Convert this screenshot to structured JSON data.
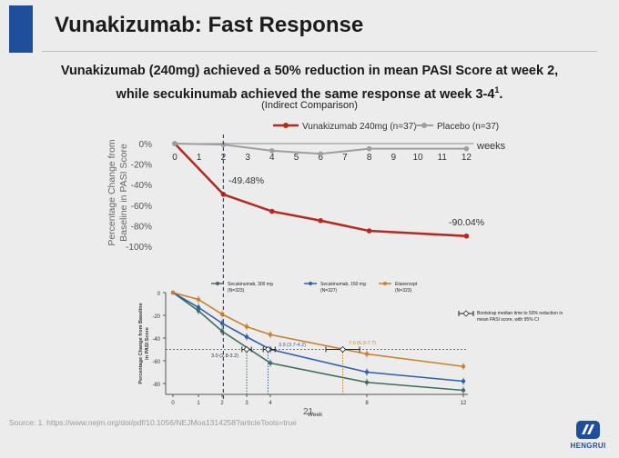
{
  "slide": {
    "title": "Vunakizumab: Fast Response",
    "subtitle_line1": "Vunakizumab (240mg) achieved a 50% reduction in mean PASI Score at week 2,",
    "subtitle_line2": "while secukinumab achieved the same response at week 3-4",
    "subtitle_sup": "1",
    "subtitle_end": ".",
    "note": "(Indirect Comparison)",
    "source": "Source: 1. https://www.nejm.org/doi/pdf/10.1056/NEJMoa1314258?articleTools=true",
    "page_number": "21",
    "logo_text": "HENGRUI",
    "colors": {
      "accent": "#1f4e9a",
      "vunakizumab": "#b5291f",
      "placebo": "#9e9e9e"
    }
  },
  "chart_data": [
    {
      "type": "line",
      "ylabel": "Percentage Change from Baseline in PASI Score",
      "xlabel": "weeks",
      "x": [
        0,
        1,
        2,
        3,
        4,
        5,
        6,
        7,
        8,
        9,
        10,
        11,
        12
      ],
      "yticks": [
        "0%",
        "-20%",
        "-40%",
        "-60%",
        "-80%",
        "-100%"
      ],
      "ylim": [
        -100,
        0
      ],
      "series": [
        {
          "name": "Vunakizumab 240mg (n=37)",
          "color": "#b5291f",
          "x": [
            0,
            2,
            4,
            6,
            8,
            12
          ],
          "values": [
            0,
            -49.48,
            -66,
            -75,
            -85,
            -90.04
          ]
        },
        {
          "name": "Placebo (n=37)",
          "color": "#9e9e9e",
          "x": [
            0,
            2,
            4,
            6,
            8,
            12
          ],
          "values": [
            0,
            -1,
            -7,
            -10,
            -5,
            -5
          ]
        }
      ],
      "annotations": [
        "-49.48%",
        "-90.04%"
      ],
      "reference_line_x": 2,
      "legend": "top"
    },
    {
      "type": "line",
      "ylabel": "Percentage Change from Baseline in PASI Score",
      "xlabel": "Week",
      "x": [
        0,
        1,
        2,
        3,
        4,
        8,
        12
      ],
      "yticks": [
        "0",
        "-20",
        "-40",
        "-60",
        "-80"
      ],
      "ylim": [
        -90,
        0
      ],
      "series": [
        {
          "name": "Secukinumab, 300 mg (N=323)",
          "color": "#3e6e5b",
          "x": [
            0,
            1,
            2,
            4,
            8,
            12
          ],
          "values": [
            0,
            -16,
            -34,
            -62,
            -79,
            -86
          ]
        },
        {
          "name": "Secukinumab, 150 mg (N=327)",
          "color": "#2f60a8",
          "x": [
            0,
            1,
            2,
            3,
            4,
            8,
            12
          ],
          "values": [
            0,
            -13,
            -27,
            -39,
            -50,
            -70,
            -78
          ]
        },
        {
          "name": "Etanercept (N=323)",
          "color": "#c8802e",
          "x": [
            0,
            1,
            2,
            3,
            4,
            8,
            12
          ],
          "values": [
            0,
            -6,
            -19,
            -30,
            -37,
            -54,
            -65
          ]
        }
      ],
      "reference_y": -50,
      "intervals": [
        {
          "label": "3.0 (2.8-3.2)",
          "x": 3.0,
          "lo": 2.8,
          "hi": 3.2
        },
        {
          "label": "3.9 (3.7-4.2)",
          "x": 3.9,
          "lo": 3.7,
          "hi": 4.2
        },
        {
          "label": "7.0 (6.3-7.7)",
          "x": 7.0,
          "lo": 6.3,
          "hi": 7.7
        }
      ],
      "interval_legend": "Bootstrap median time to 50% reduction in mean PASI score, with 95% CI",
      "blue_dashed_x": 2,
      "legend": "top"
    }
  ]
}
